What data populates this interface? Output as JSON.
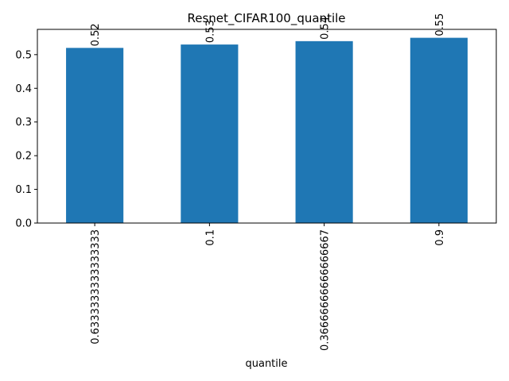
{
  "chart_data": {
    "type": "bar",
    "title": "Resnet_CIFAR100_quantile",
    "xlabel": "quantile",
    "ylabel": "",
    "categories": [
      "0.6333333333333333",
      "0.1",
      "0.36666666666666667",
      "0.9"
    ],
    "values": [
      0.52,
      0.53,
      0.54,
      0.55
    ],
    "data_labels": [
      "0.52",
      "0.53",
      "0.54",
      "0.55"
    ],
    "ylim": [
      0,
      0.575
    ],
    "yticks": [
      0.0,
      0.1,
      0.2,
      0.3,
      0.4,
      0.5
    ],
    "ytick_labels": [
      "0.0",
      "0.1",
      "0.2",
      "0.3",
      "0.4",
      "0.5"
    ],
    "grid": false,
    "legend": "none",
    "colors": {
      "bar": "#1f77b4",
      "axis": "#000000",
      "background": "#ffffff"
    }
  }
}
